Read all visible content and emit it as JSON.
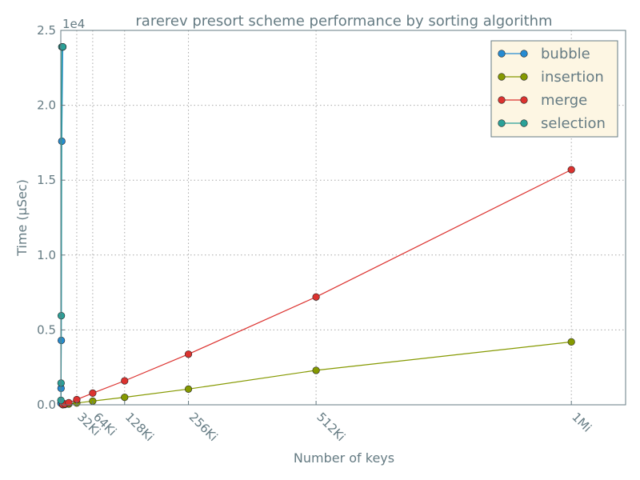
{
  "chart_data": {
    "type": "line",
    "title": "rarerev presort scheme performance by sorting algorithm",
    "xlabel": "Number of keys",
    "ylabel": "Time (μSec)",
    "y_exponent_label": "1e4",
    "xlim": [
      0,
      1160000
    ],
    "ylim": [
      0,
      25000
    ],
    "x_ticks": [
      {
        "value": 32768,
        "label": "32Ki"
      },
      {
        "value": 65536,
        "label": "64Ki"
      },
      {
        "value": 131072,
        "label": "128Ki"
      },
      {
        "value": 262144,
        "label": "256Ki"
      },
      {
        "value": 524288,
        "label": "512Ki"
      },
      {
        "value": 1048576,
        "label": "1Mi"
      }
    ],
    "y_ticks": [
      {
        "value": 0,
        "label": "0.0"
      },
      {
        "value": 5000,
        "label": "0.5"
      },
      {
        "value": 10000,
        "label": "1.0"
      },
      {
        "value": 15000,
        "label": "1.5"
      },
      {
        "value": 20000,
        "label": "2.0"
      },
      {
        "value": 25000,
        "label": "2.5"
      }
    ],
    "grid": true,
    "legend_position": "top-right",
    "series": [
      {
        "name": "bubble",
        "color": "#268bd2",
        "x": [
          256,
          512,
          1024,
          2048,
          4096
        ],
        "y": [
          110,
          1100,
          4300,
          17600,
          23900
        ]
      },
      {
        "name": "insertion",
        "color": "#859900",
        "x": [
          4096,
          8192,
          16384,
          32768,
          65536,
          131072,
          262144,
          524288,
          1048576
        ],
        "y": [
          5,
          20,
          55,
          120,
          250,
          500,
          1050,
          2300,
          4200
        ]
      },
      {
        "name": "merge",
        "color": "#dc322f",
        "x": [
          4096,
          8192,
          16384,
          32768,
          65536,
          131072,
          262144,
          524288,
          1048576
        ],
        "y": [
          20,
          60,
          140,
          350,
          780,
          1600,
          3380,
          7200,
          15700
        ]
      },
      {
        "name": "selection",
        "color": "#2aa198",
        "x": [
          256,
          512,
          1024,
          2048,
          4096
        ],
        "y": [
          300,
          1450,
          5950,
          23900,
          23900
        ]
      }
    ]
  }
}
